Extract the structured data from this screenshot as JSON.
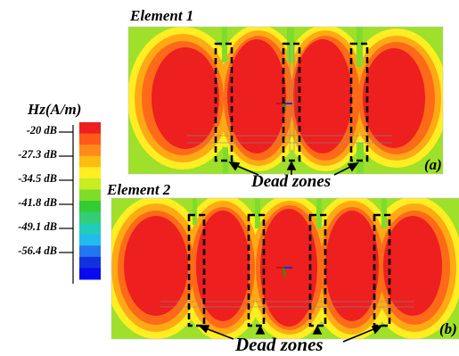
{
  "colorbar": {
    "title": "Hz(A/m)",
    "ticks": [
      "-20 dB",
      "-27.3 dB",
      "-34.5 dB",
      "-41.8 dB",
      "-49.1 dB",
      "-56.4 dB"
    ],
    "colors": [
      "#ee1f1f",
      "#ff5a1a",
      "#ff8a1a",
      "#ffbb11",
      "#ffee22",
      "#c8ee22",
      "#7fdd2a",
      "#33cc33",
      "#33cc77",
      "#22ccbb",
      "#22bbee",
      "#2277ee",
      "#1133dd",
      "#0a0aee"
    ]
  },
  "panels": [
    {
      "title": "Element 1",
      "tag": "(a)",
      "dead_zone_label": "Dead zones"
    },
    {
      "title": "Element 2",
      "tag": "(b)",
      "dead_zone_label": "Dead zones"
    }
  ],
  "colors": {
    "field_bg": "#7fdd2a",
    "hot": "#ee1f1f",
    "warm": "#ff8a1a",
    "yellow": "#ffee22",
    "dead_zone_box": "#000000"
  }
}
